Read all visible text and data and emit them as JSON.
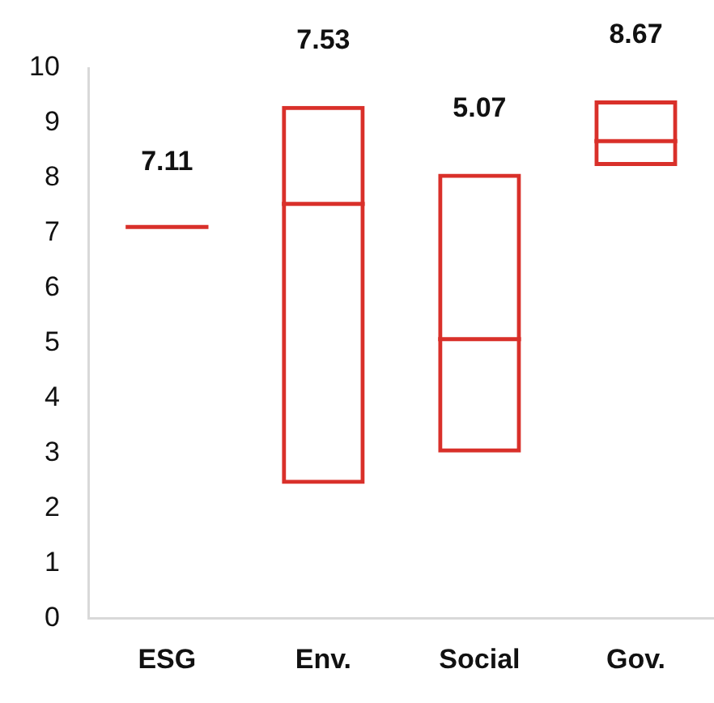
{
  "chart_data": {
    "type": "box",
    "categories": [
      "ESG",
      "Env.",
      "Social",
      "Gov."
    ],
    "boxes": [
      {
        "low": 7.11,
        "q1": 7.11,
        "median": 7.11,
        "q3": 7.11,
        "high": 7.11
      },
      {
        "low": 2.44,
        "q1": 2.44,
        "median": 7.53,
        "q3": 9.31,
        "high": 9.31
      },
      {
        "low": 3.01,
        "q1": 3.01,
        "median": 5.07,
        "q3": 8.08,
        "high": 8.08
      },
      {
        "low": 8.22,
        "q1": 8.22,
        "median": 8.67,
        "q3": 9.41,
        "high": 9.41
      }
    ],
    "color": "#d9302a",
    "ylim": [
      0,
      10
    ],
    "yticks": [
      0,
      1,
      2,
      3,
      4,
      5,
      6,
      7,
      8,
      9,
      10
    ],
    "grid": false,
    "legend": false,
    "value_labels": [
      "7.11",
      "7.53",
      "5.07",
      "8.67"
    ]
  }
}
